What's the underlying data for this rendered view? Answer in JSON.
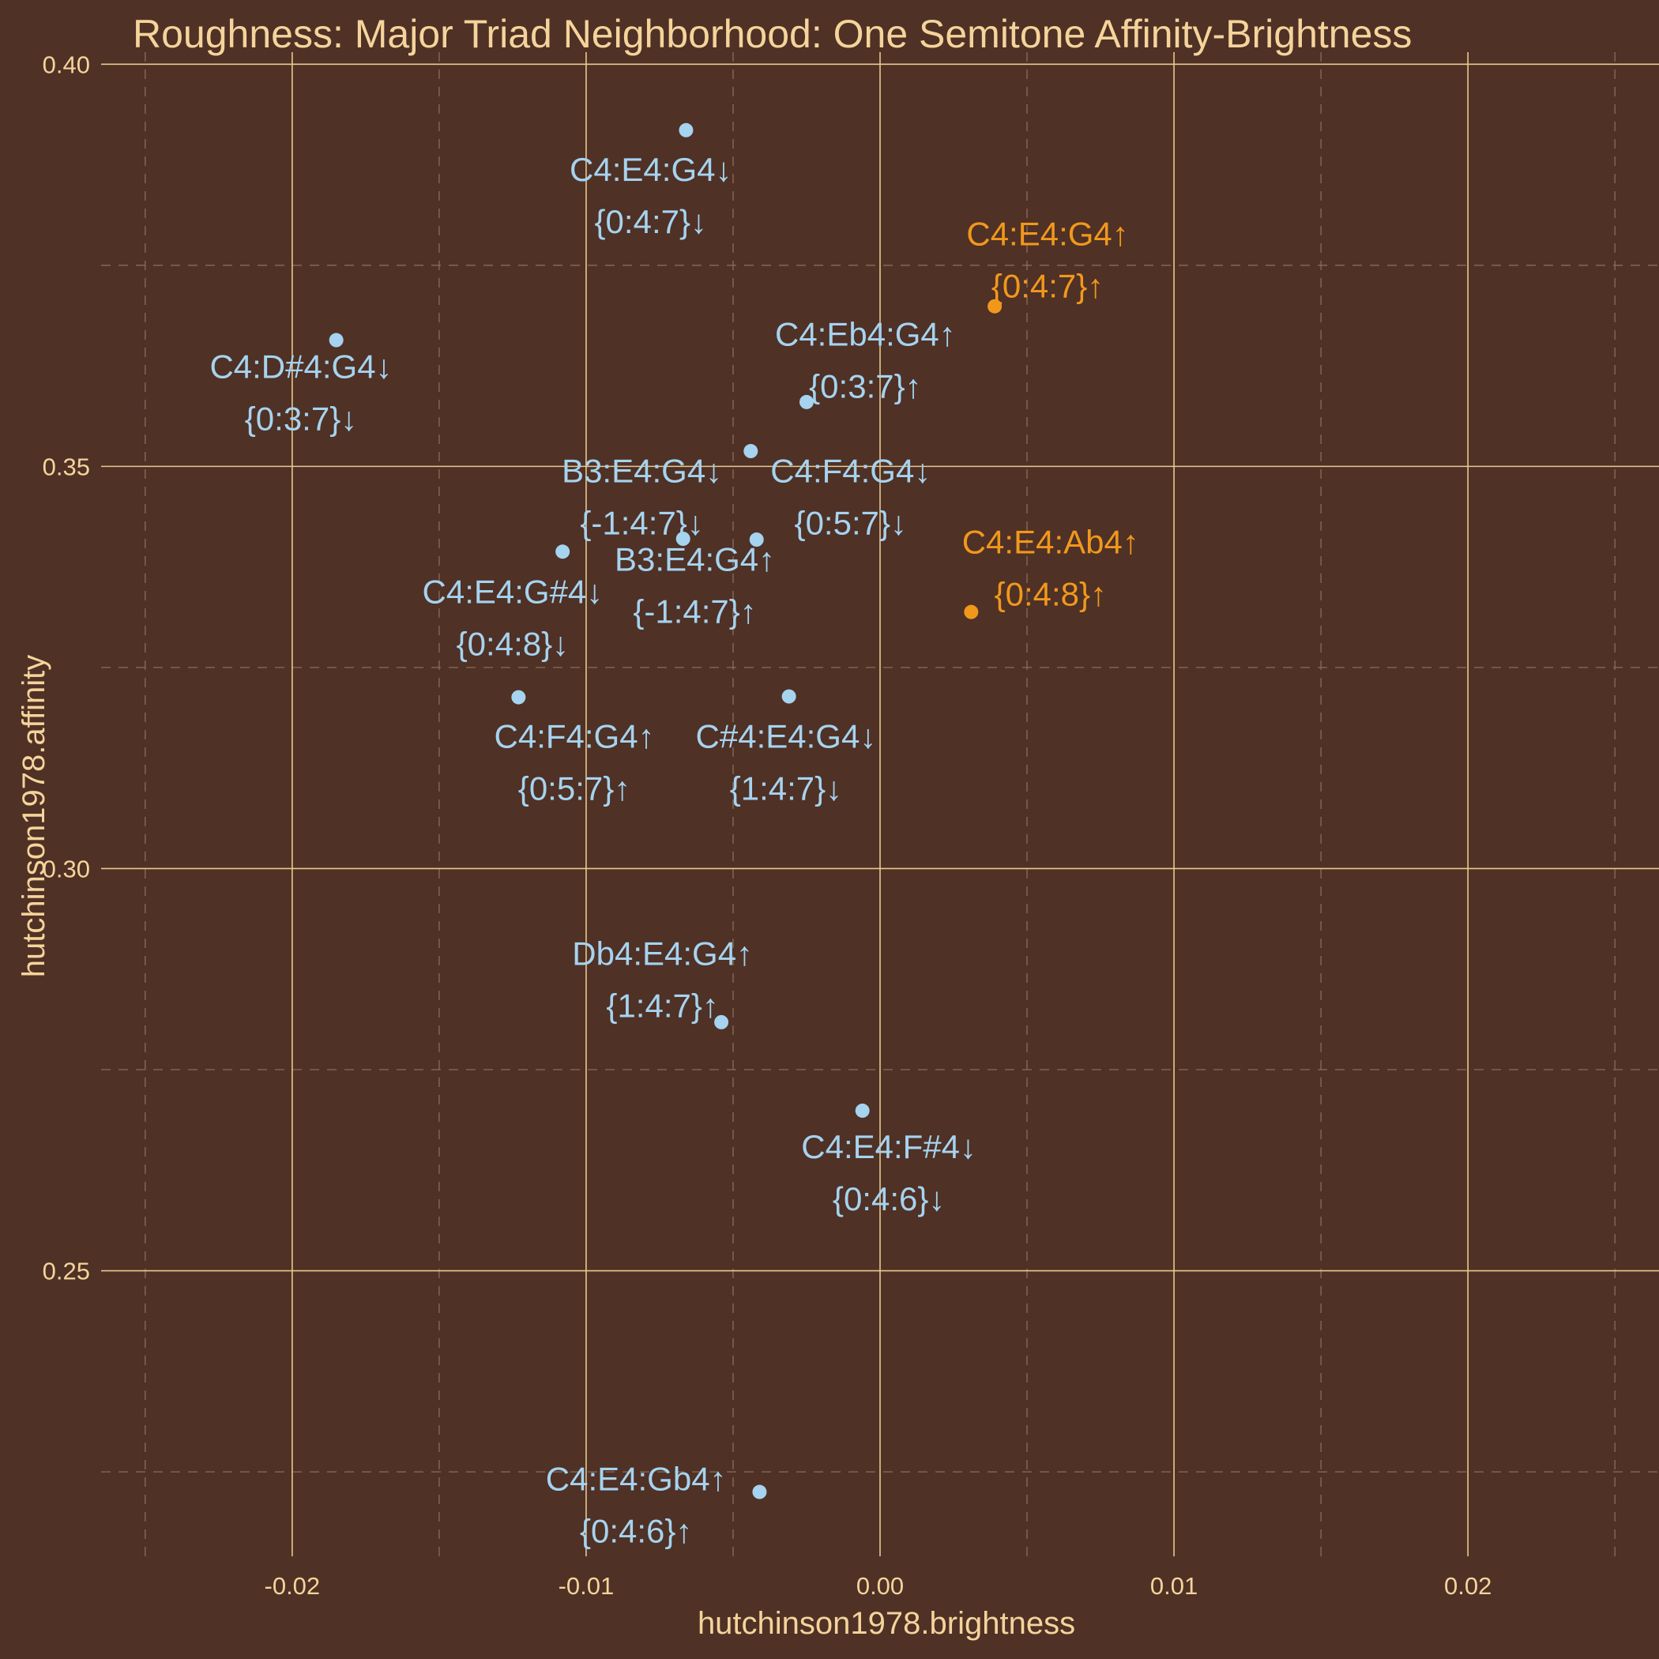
{
  "chart_data": {
    "type": "scatter",
    "title": "Roughness: Major Triad Neighborhood: One Semitone Affinity-Brightness",
    "xlabel": "hutchinson1978.brightness",
    "ylabel": "hutchinson1978.affinity",
    "xlim": [
      -0.0265,
      0.0265
    ],
    "ylim": [
      0.2145,
      0.4015
    ],
    "x_ticks": [
      -0.02,
      -0.01,
      0.0,
      0.01,
      0.02
    ],
    "x_tick_labels": [
      "-0.02",
      "-0.01",
      "0.00",
      "0.01",
      "0.02"
    ],
    "y_ticks": [
      0.25,
      0.3,
      0.35,
      0.4
    ],
    "y_tick_labels": [
      "0.25",
      "0.30",
      "0.35",
      "0.40"
    ],
    "x_minor_ticks": [
      -0.025,
      -0.015,
      -0.005,
      0.005,
      0.015,
      0.025
    ],
    "y_minor_ticks": [
      0.225,
      0.275,
      0.325,
      0.375
    ],
    "grid": true,
    "legend": "none",
    "colors": {
      "background": "#4f3126",
      "text": "#f5d49b",
      "major_grid": "#e8c98f",
      "minor_grid": "#8a6d5a",
      "neighbor": "#a6d3ef",
      "root": "#f1981c"
    },
    "points": [
      {
        "x": -0.0066,
        "y": 0.3918,
        "group": "neighbor",
        "label1": "C4:E4:G4↓",
        "label2": "{0:4:7}↓",
        "lx": -0.0078,
        "ly": 0.3855
      },
      {
        "x": 0.0039,
        "y": 0.3699,
        "group": "root",
        "label1": "C4:E4:G4↑",
        "label2": "{0:4:7}↑",
        "lx": 0.0057,
        "ly": 0.3775
      },
      {
        "x": -0.0185,
        "y": 0.3657,
        "group": "neighbor",
        "label1": "C4:D#4:G4↓",
        "label2": "{0:3:7}↓",
        "lx": -0.0197,
        "ly": 0.361
      },
      {
        "x": -0.0025,
        "y": 0.358,
        "group": "neighbor",
        "label1": "C4:Eb4:G4↑",
        "label2": "{0:3:7}↑",
        "lx": -0.0005,
        "ly": 0.365
      },
      {
        "x": -0.0044,
        "y": 0.3519,
        "group": "neighbor",
        "label1": "B3:E4:G4↓",
        "label2": "{-1:4:7}↓",
        "lx": -0.0081,
        "ly": 0.348
      },
      {
        "x": -0.0042,
        "y": 0.3409,
        "group": "neighbor",
        "label1": "C4:F4:G4↓",
        "label2": "{0:5:7}↓",
        "lx": -0.001,
        "ly": 0.348
      },
      {
        "x": -0.0067,
        "y": 0.341,
        "group": "neighbor",
        "label1": "B3:E4:G4↑",
        "label2": "{-1:4:7}↑",
        "lx": -0.0063,
        "ly": 0.337
      },
      {
        "x": -0.0108,
        "y": 0.3394,
        "group": "neighbor",
        "label1": "C4:E4:G#4↓",
        "label2": "{0:4:8}↓",
        "lx": -0.0125,
        "ly": 0.333
      },
      {
        "x": 0.0031,
        "y": 0.3319,
        "group": "root",
        "label1": "C4:E4:Ab4↑",
        "label2": "{0:4:8}↑",
        "lx": 0.0058,
        "ly": 0.3392
      },
      {
        "x": -0.0123,
        "y": 0.3213,
        "group": "neighbor",
        "label1": "C4:F4:G4↑",
        "label2": "{0:5:7}↑",
        "lx": -0.0104,
        "ly": 0.315
      },
      {
        "x": -0.0031,
        "y": 0.3214,
        "group": "neighbor",
        "label1": "C#4:E4:G4↓",
        "label2": "{1:4:7}↓",
        "lx": -0.0032,
        "ly": 0.315
      },
      {
        "x": -0.0054,
        "y": 0.2809,
        "group": "neighbor",
        "label1": "Db4:E4:G4↑",
        "label2": "{1:4:7}↑",
        "lx": -0.0074,
        "ly": 0.288
      },
      {
        "x": -0.0006,
        "y": 0.2699,
        "group": "neighbor",
        "label1": "C4:E4:F#4↓",
        "label2": "{0:4:6}↓",
        "lx": 0.0003,
        "ly": 0.264
      },
      {
        "x": -0.0041,
        "y": 0.2225,
        "group": "neighbor",
        "label1": "C4:E4:Gb4↑",
        "label2": "{0:4:6}↑",
        "lx": -0.0083,
        "ly": 0.2227
      }
    ]
  }
}
